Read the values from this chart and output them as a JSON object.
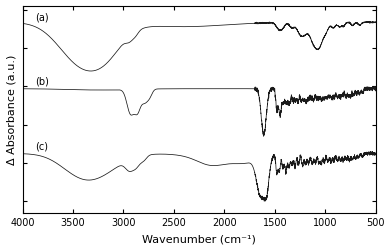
{
  "title": "",
  "xlabel": "Wavenumber (cm⁻¹)",
  "ylabel": "Δ Absorbance (a.u.)",
  "xlim": [
    4000,
    500
  ],
  "labels": [
    "(a)",
    "(b)",
    "(c)"
  ],
  "background_color": "#ffffff",
  "xticks": [
    4000,
    3500,
    3000,
    2500,
    2000,
    1500,
    1000,
    500
  ],
  "offsets": [
    1.7,
    0.85,
    0.0
  ],
  "line_color": "#1a1a1a"
}
